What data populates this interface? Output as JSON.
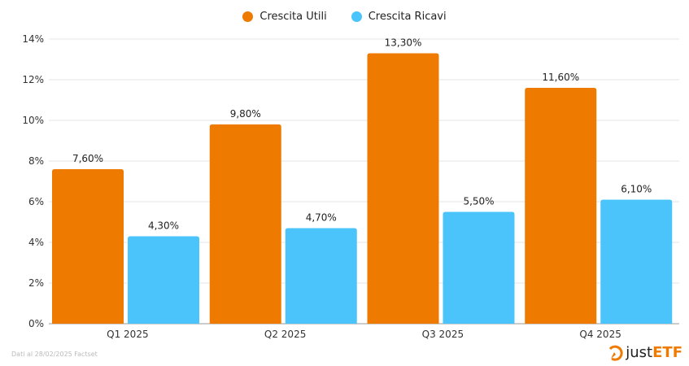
{
  "chart_data": {
    "type": "bar",
    "categories": [
      "Q1 2025",
      "Q2 2025",
      "Q3 2025",
      "Q4 2025"
    ],
    "series": [
      {
        "name": "Crescita Utili",
        "values": [
          7.6,
          9.8,
          13.3,
          11.6
        ],
        "labels": [
          "7,60%",
          "9,80%",
          "13,30%",
          "11,60%"
        ],
        "color": "#EE7A00"
      },
      {
        "name": "Crescita Ricavi",
        "values": [
          4.3,
          4.7,
          5.5,
          6.1
        ],
        "labels": [
          "4,30%",
          "4,70%",
          "5,50%",
          "6,10%"
        ],
        "color": "#4BC4FC"
      }
    ],
    "ylim": [
      0,
      14
    ],
    "yticks": [
      "0%",
      "2%",
      "4%",
      "6%",
      "8%",
      "10%",
      "12%",
      "14%"
    ],
    "grid": true,
    "legend": "top-center"
  },
  "source": "Dati al 28/02/2025 Factset",
  "logo": {
    "just": "just",
    "etf": "ETF"
  }
}
